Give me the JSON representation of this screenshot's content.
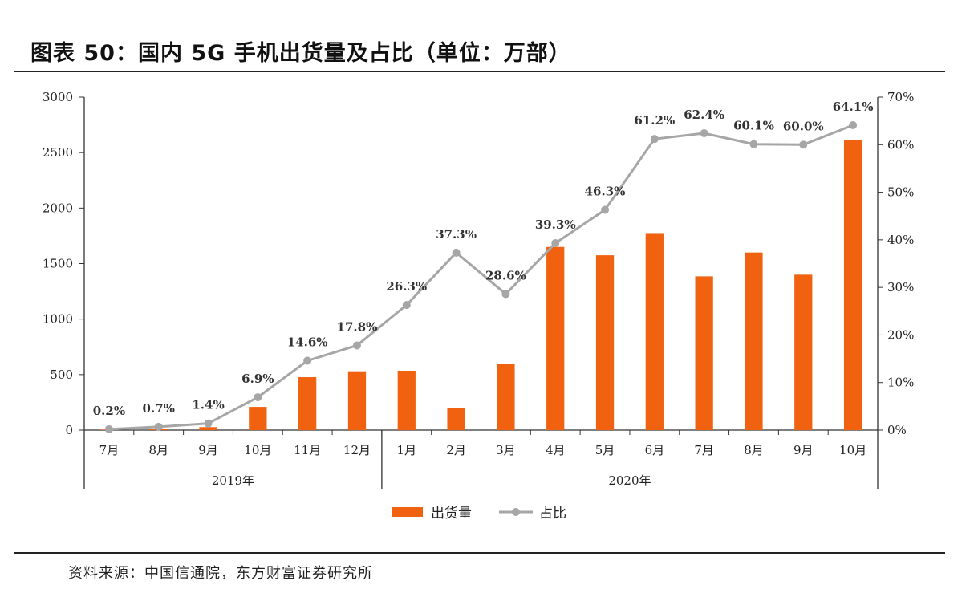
{
  "title": "图表 50：国内 5G 手机出货量及占比（单位：万部）",
  "source": "资料来源：中国信通院，东方财富证券研究所",
  "colors": {
    "bar": "#f0620f",
    "line": "#a6a6a6",
    "axis": "#333333"
  },
  "chart_data": {
    "type": "bar",
    "categories": [
      "7月",
      "8月",
      "9月",
      "10月",
      "11月",
      "12月",
      "1月",
      "2月",
      "3月",
      "4月",
      "5月",
      "6月",
      "7月",
      "8月",
      "9月",
      "10月"
    ],
    "groups": [
      {
        "label": "2019年",
        "count": 6
      },
      {
        "label": "2020年",
        "count": 10
      }
    ],
    "series": [
      {
        "name": "出货量",
        "type": "bar",
        "axis": "left",
        "values": [
          5,
          10,
          27,
          209,
          477,
          530,
          535,
          200,
          600,
          1650,
          1575,
          1775,
          1385,
          1600,
          1400,
          2615
        ]
      },
      {
        "name": "占比",
        "type": "line",
        "axis": "right",
        "values": [
          0.2,
          0.7,
          1.4,
          6.9,
          14.6,
          17.8,
          26.3,
          37.3,
          28.6,
          39.3,
          46.3,
          61.2,
          62.4,
          60.1,
          60.0,
          64.1
        ],
        "labels": [
          "0.2%",
          "0.7%",
          "1.4%",
          "6.9%",
          "14.6%",
          "17.8%",
          "26.3%",
          "37.3%",
          "28.6%",
          "39.3%",
          "46.3%",
          "61.2%",
          "62.4%",
          "60.1%",
          "60.0%",
          "64.1%"
        ]
      }
    ],
    "ylim": [
      0,
      3000
    ],
    "y_ticks": [
      "0",
      "500",
      "1000",
      "1500",
      "2000",
      "2500",
      "3000"
    ],
    "y2lim": [
      0,
      70
    ],
    "y2_ticks": [
      "0%",
      "10%",
      "20%",
      "30%",
      "40%",
      "50%",
      "60%",
      "70%"
    ],
    "grid": false,
    "legend": "bottom"
  }
}
